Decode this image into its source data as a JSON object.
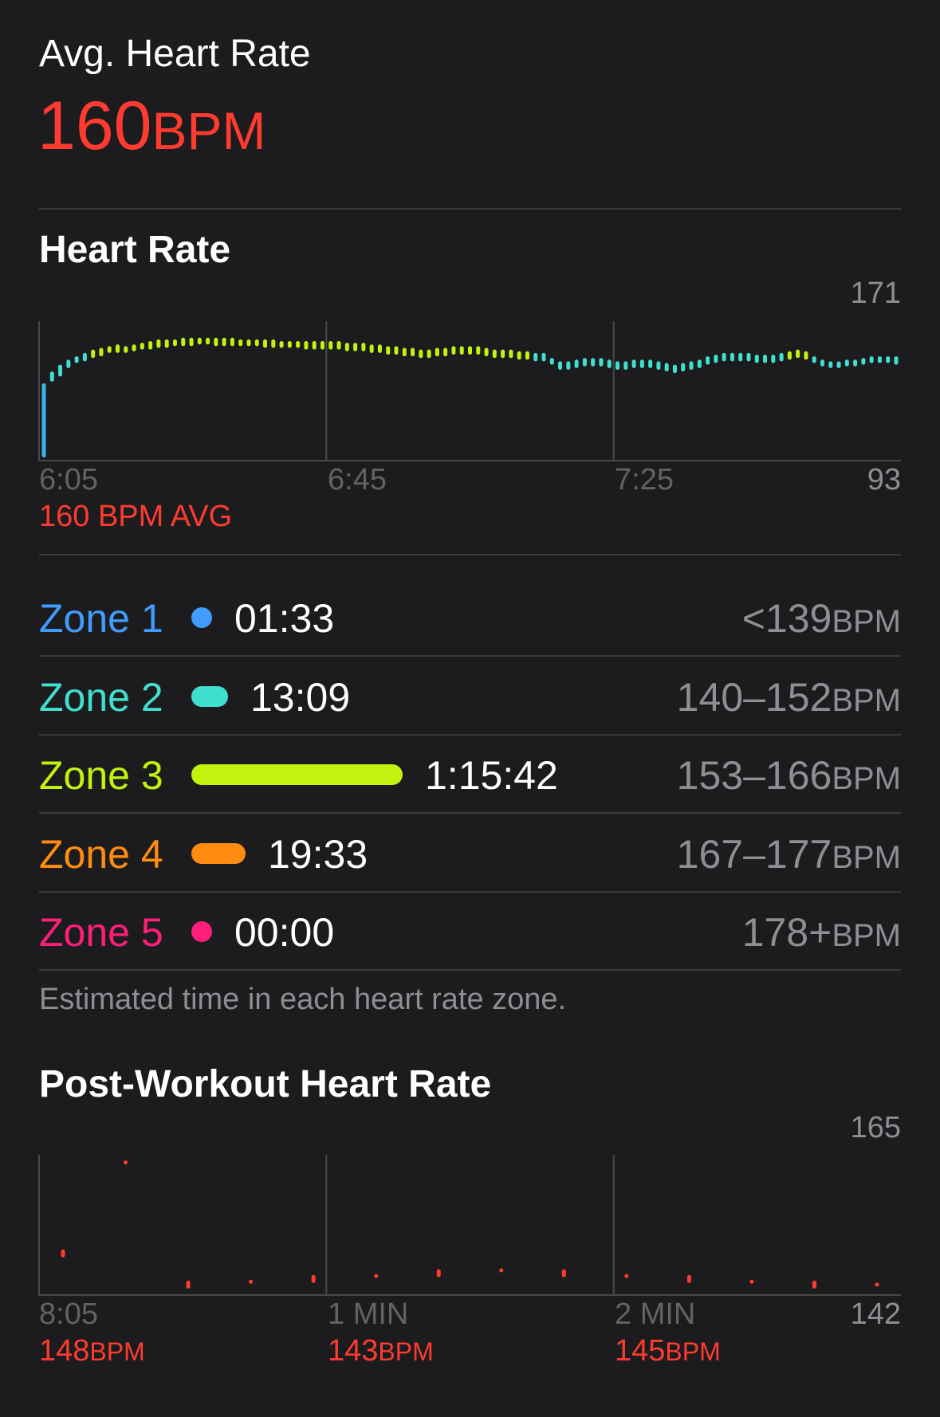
{
  "avg_heart_rate": {
    "label": "Avg. Heart Rate",
    "value": "160",
    "unit": "BPM"
  },
  "heart_rate_chart": {
    "title": "Heart Rate",
    "y_max_label": "171",
    "y_min_label": "93",
    "x_labels": [
      "6:05",
      "6:45",
      "7:25"
    ],
    "avg_label": "160 BPM AVG"
  },
  "zones": [
    {
      "name": "Zone 1",
      "time": "01:33",
      "range": "<139",
      "unit": "BPM",
      "color": "#409cff",
      "fraction": 0.0
    },
    {
      "name": "Zone 2",
      "time": "13:09",
      "range": "140–152",
      "unit": "BPM",
      "color": "#40e0d0",
      "fraction": 0.174
    },
    {
      "name": "Zone 3",
      "time": "1:15:42",
      "range": "153–166",
      "unit": "BPM",
      "color": "#c4f20f",
      "fraction": 1.0
    },
    {
      "name": "Zone 4",
      "time": "19:33",
      "range": "167–177",
      "unit": "BPM",
      "color": "#ff8c10",
      "fraction": 0.258
    },
    {
      "name": "Zone 5",
      "time": "00:00",
      "range": "178+",
      "unit": "BPM",
      "color": "#ff1f7a",
      "fraction": 0.0
    }
  ],
  "zones_footnote": "Estimated time in each heart rate zone.",
  "post_workout": {
    "title": "Post-Workout Heart Rate",
    "y_max_label": "165",
    "y_min_label": "142",
    "x_labels": [
      "8:05",
      "1 MIN",
      "2 MIN"
    ],
    "readings": [
      {
        "value": "148",
        "unit": "BPM"
      },
      {
        "value": "143",
        "unit": "BPM"
      },
      {
        "value": "145",
        "unit": "BPM"
      }
    ]
  },
  "chart_data": [
    {
      "type": "bar",
      "title": "Heart Rate",
      "ylim": [
        93,
        171
      ],
      "x_ticks": [
        "6:05",
        "6:45",
        "7:25"
      ],
      "series": [
        {
          "values": [
            [
              93,
              137
            ],
            [
              138,
              144
            ],
            [
              141,
              148
            ],
            [
              146,
              151
            ],
            [
              149,
              153
            ],
            [
              150,
              155
            ],
            [
              152,
              157
            ],
            [
              153,
              158
            ],
            [
              155,
              159
            ],
            [
              155,
              160
            ],
            [
              155,
              159
            ],
            [
              156,
              160
            ],
            [
              157,
              161
            ],
            [
              157,
              162
            ],
            [
              158,
              163
            ],
            [
              158,
              163
            ],
            [
              159,
              163
            ],
            [
              159,
              164
            ],
            [
              159,
              164
            ],
            [
              160,
              164
            ],
            [
              160,
              164
            ],
            [
              159,
              164
            ],
            [
              159,
              164
            ],
            [
              159,
              164
            ],
            [
              159,
              163
            ],
            [
              159,
              163
            ],
            [
              159,
              163
            ],
            [
              158,
              163
            ],
            [
              158,
              163
            ],
            [
              158,
              162
            ],
            [
              158,
              162
            ],
            [
              158,
              162
            ],
            [
              157,
              162
            ],
            [
              157,
              162
            ],
            [
              157,
              162
            ],
            [
              157,
              162
            ],
            [
              157,
              162
            ],
            [
              156,
              161
            ],
            [
              156,
              161
            ],
            [
              156,
              161
            ],
            [
              155,
              160
            ],
            [
              155,
              160
            ],
            [
              154,
              159
            ],
            [
              154,
              159
            ],
            [
              153,
              158
            ],
            [
              153,
              158
            ],
            [
              152,
              157
            ],
            [
              152,
              157
            ],
            [
              153,
              158
            ],
            [
              153,
              158
            ],
            [
              154,
              159
            ],
            [
              154,
              159
            ],
            [
              154,
              159
            ],
            [
              154,
              159
            ],
            [
              153,
              158
            ],
            [
              152,
              157
            ],
            [
              152,
              157
            ],
            [
              152,
              157
            ],
            [
              151,
              156
            ],
            [
              151,
              156
            ],
            [
              150,
              155
            ],
            [
              150,
              155
            ],
            [
              148,
              152
            ],
            [
              145,
              150
            ],
            [
              145,
              150
            ],
            [
              146,
              151
            ],
            [
              147,
              152
            ],
            [
              147,
              152
            ],
            [
              147,
              152
            ],
            [
              146,
              151
            ],
            [
              145,
              150
            ],
            [
              145,
              150
            ],
            [
              146,
              151
            ],
            [
              146,
              151
            ],
            [
              146,
              151
            ],
            [
              145,
              150
            ],
            [
              144,
              149
            ],
            [
              143,
              148
            ],
            [
              144,
              149
            ],
            [
              145,
              150
            ],
            [
              146,
              151
            ],
            [
              148,
              153
            ],
            [
              149,
              154
            ],
            [
              150,
              155
            ],
            [
              150,
              155
            ],
            [
              150,
              155
            ],
            [
              150,
              155
            ],
            [
              149,
              154
            ],
            [
              149,
              154
            ],
            [
              149,
              154
            ],
            [
              150,
              155
            ],
            [
              151,
              156
            ],
            [
              152,
              157
            ],
            [
              151,
              156
            ],
            [
              149,
              153
            ],
            [
              147,
              151
            ],
            [
              146,
              150
            ],
            [
              146,
              150
            ],
            [
              147,
              151
            ],
            [
              147,
              151
            ],
            [
              148,
              152
            ],
            [
              149,
              153
            ],
            [
              149,
              153
            ],
            [
              149,
              153
            ],
            [
              148,
              153
            ]
          ]
        }
      ]
    },
    {
      "type": "scatter",
      "title": "Post-Workout Heart Rate",
      "ylim": [
        142,
        165
      ],
      "x_ticks": [
        "8:05",
        "1 MIN",
        "2 MIN"
      ],
      "series": [
        {
          "values": [
            148.5,
            164.5,
            143,
            143.5,
            144,
            144.5,
            145,
            145.5,
            145,
            144.5,
            144,
            143.5,
            143,
            143
          ]
        }
      ]
    }
  ]
}
